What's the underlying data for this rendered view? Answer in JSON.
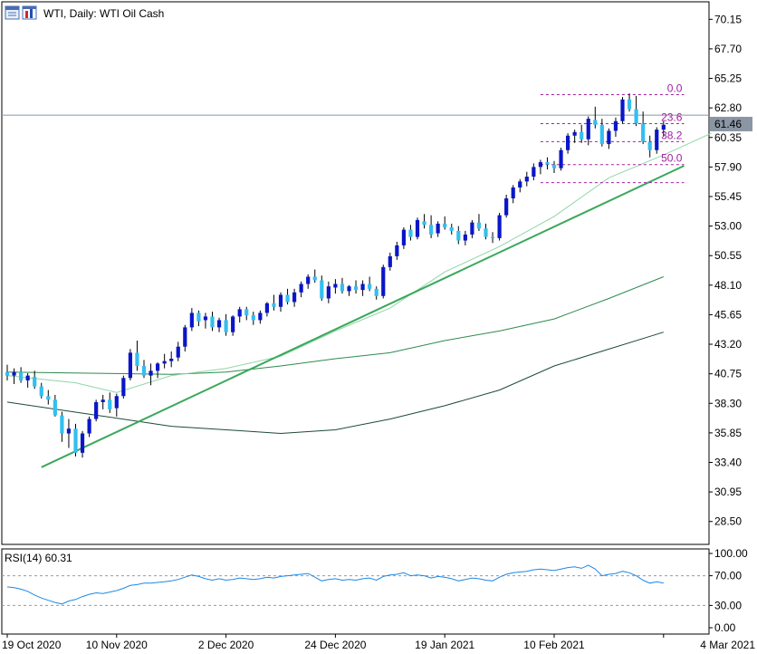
{
  "header": {
    "title": "WTI, Daily:  WTI Oil Cash",
    "icons": [
      "window-icon",
      "chart-icon"
    ]
  },
  "rsi_label": "RSI(14) 60.31",
  "colors": {
    "bull": "#0a16c8",
    "bear": "#33bff0",
    "trendline": "#3aa85a",
    "ma_fast": "#8fd6a8",
    "ma_mid": "#2e8a4e",
    "ma_slow": "#1e4a35",
    "fib": "#a020a0",
    "rsi": "#1e88e5",
    "last_price_bg": "#8a96a3"
  },
  "last_price": "61.46",
  "chart_data": {
    "type": "candlestick",
    "title": "WTI, Daily:  WTI Oil Cash",
    "price_axis_ticks": [
      "70.15",
      "67.70",
      "65.25",
      "62.80",
      "60.35",
      "57.90",
      "55.45",
      "53.00",
      "50.55",
      "48.10",
      "45.65",
      "43.20",
      "40.75",
      "38.30",
      "35.85",
      "33.40",
      "30.95",
      "28.50"
    ],
    "price_range": [
      26.6,
      71.6
    ],
    "rsi_axis_ticks": [
      "100.00",
      "70.00",
      "30.00",
      "0.00"
    ],
    "rsi_range": [
      0,
      100
    ],
    "time_axis_labels": [
      "19 Oct 2020",
      "10 Nov 2020",
      "2 Dec 2020",
      "24 Dec 2020",
      "19 Jan 2021",
      "10 Feb 2021",
      "4 Mar 2021"
    ],
    "time_label_indices": [
      0,
      16,
      32,
      48,
      64,
      80,
      96
    ],
    "candles": [
      [
        40.9,
        41.5,
        40.2,
        40.6
      ],
      [
        40.6,
        41.2,
        39.9,
        40.9
      ],
      [
        40.9,
        41.3,
        40.0,
        40.2
      ],
      [
        40.2,
        40.8,
        39.6,
        40.6
      ],
      [
        40.5,
        41.0,
        39.5,
        39.7
      ],
      [
        39.7,
        40.0,
        38.7,
        38.9
      ],
      [
        38.9,
        39.4,
        38.2,
        38.6
      ],
      [
        38.6,
        39.0,
        37.2,
        37.3
      ],
      [
        37.3,
        37.6,
        35.1,
        35.8
      ],
      [
        35.8,
        37.0,
        34.6,
        36.2
      ],
      [
        36.2,
        36.6,
        33.9,
        34.2
      ],
      [
        34.2,
        36.0,
        33.8,
        35.8
      ],
      [
        35.8,
        37.2,
        35.5,
        37.0
      ],
      [
        37.0,
        38.6,
        36.8,
        38.4
      ],
      [
        38.4,
        39.0,
        37.8,
        38.6
      ],
      [
        38.6,
        39.2,
        37.5,
        37.8
      ],
      [
        37.9,
        39.1,
        37.2,
        38.9
      ],
      [
        38.9,
        40.6,
        38.7,
        40.4
      ],
      [
        40.4,
        42.8,
        40.2,
        42.5
      ],
      [
        42.5,
        43.5,
        41.0,
        41.4
      ],
      [
        41.4,
        41.9,
        40.4,
        40.6
      ],
      [
        40.6,
        41.6,
        39.8,
        41.0
      ],
      [
        41.0,
        41.7,
        40.4,
        41.6
      ],
      [
        41.6,
        42.4,
        41.2,
        41.8
      ],
      [
        41.8,
        42.6,
        41.3,
        42.0
      ],
      [
        42.1,
        43.4,
        41.8,
        43.0
      ],
      [
        43.0,
        44.8,
        42.6,
        44.6
      ],
      [
        44.6,
        46.2,
        44.3,
        45.8
      ],
      [
        45.8,
        46.0,
        44.7,
        45.1
      ],
      [
        45.2,
        45.8,
        44.5,
        45.5
      ],
      [
        45.5,
        45.9,
        44.3,
        44.6
      ],
      [
        44.6,
        45.4,
        44.2,
        45.2
      ],
      [
        45.2,
        45.7,
        43.9,
        44.2
      ],
      [
        44.2,
        45.6,
        43.9,
        45.5
      ],
      [
        45.5,
        46.3,
        45.0,
        46.1
      ],
      [
        46.1,
        46.3,
        45.2,
        45.6
      ],
      [
        45.6,
        45.9,
        44.8,
        45.2
      ],
      [
        45.2,
        46.0,
        44.9,
        45.8
      ],
      [
        45.8,
        46.7,
        45.5,
        46.6
      ],
      [
        46.6,
        47.3,
        46.0,
        46.3
      ],
      [
        46.3,
        47.5,
        45.9,
        47.3
      ],
      [
        47.3,
        47.8,
        46.5,
        46.7
      ],
      [
        46.7,
        47.8,
        46.3,
        47.5
      ],
      [
        47.5,
        48.4,
        47.1,
        48.2
      ],
      [
        48.2,
        49.0,
        47.8,
        48.8
      ],
      [
        48.8,
        49.4,
        48.3,
        48.5
      ],
      [
        48.5,
        48.9,
        46.8,
        47.0
      ],
      [
        47.0,
        48.4,
        46.6,
        48.0
      ],
      [
        47.9,
        48.6,
        47.4,
        48.2
      ],
      [
        48.2,
        48.7,
        47.4,
        47.6
      ],
      [
        47.6,
        48.1,
        47.2,
        48.0
      ],
      [
        48.0,
        48.5,
        47.4,
        47.7
      ],
      [
        47.7,
        48.5,
        47.2,
        48.2
      ],
      [
        48.2,
        48.8,
        47.6,
        47.8
      ],
      [
        47.8,
        48.0,
        46.9,
        47.2
      ],
      [
        47.2,
        49.8,
        47.0,
        49.6
      ],
      [
        49.6,
        50.8,
        49.3,
        50.5
      ],
      [
        50.5,
        51.7,
        50.2,
        51.4
      ],
      [
        51.4,
        52.9,
        51.1,
        52.7
      ],
      [
        52.7,
        53.1,
        51.8,
        52.1
      ],
      [
        52.1,
        53.7,
        51.9,
        53.5
      ],
      [
        53.4,
        54.0,
        52.8,
        53.1
      ],
      [
        53.1,
        53.9,
        52.0,
        52.3
      ],
      [
        52.4,
        53.4,
        52.1,
        53.2
      ],
      [
        53.2,
        53.8,
        52.7,
        52.9
      ],
      [
        52.9,
        53.2,
        52.3,
        52.6
      ],
      [
        52.6,
        53.0,
        51.5,
        51.8
      ],
      [
        51.8,
        52.6,
        51.4,
        52.3
      ],
      [
        52.3,
        53.5,
        52.0,
        53.3
      ],
      [
        53.3,
        54.0,
        52.6,
        52.8
      ],
      [
        52.8,
        53.2,
        51.9,
        52.1
      ],
      [
        52.1,
        52.5,
        51.6,
        52.0
      ],
      [
        52.0,
        54.1,
        51.8,
        53.9
      ],
      [
        53.9,
        55.6,
        53.7,
        55.3
      ],
      [
        55.3,
        56.4,
        54.9,
        56.2
      ],
      [
        56.2,
        56.9,
        55.8,
        56.7
      ],
      [
        56.7,
        57.5,
        56.3,
        57.1
      ],
      [
        57.1,
        58.2,
        56.8,
        57.9
      ],
      [
        57.9,
        58.5,
        57.3,
        58.3
      ],
      [
        58.3,
        58.7,
        57.7,
        58.1
      ],
      [
        58.1,
        58.4,
        57.4,
        57.8
      ],
      [
        57.8,
        59.5,
        57.6,
        59.3
      ],
      [
        59.3,
        60.7,
        59.0,
        60.5
      ],
      [
        60.5,
        61.0,
        59.9,
        60.8
      ],
      [
        60.8,
        61.4,
        59.9,
        60.2
      ],
      [
        60.2,
        62.1,
        59.7,
        61.9
      ],
      [
        61.8,
        62.9,
        61.1,
        61.4
      ],
      [
        61.4,
        61.9,
        59.6,
        59.8
      ],
      [
        59.8,
        61.1,
        59.4,
        60.9
      ],
      [
        60.9,
        62.0,
        60.4,
        61.7
      ],
      [
        61.7,
        63.7,
        61.5,
        63.5
      ],
      [
        63.5,
        64.0,
        62.5,
        62.7
      ],
      [
        62.7,
        63.8,
        61.3,
        61.5
      ],
      [
        61.5,
        62.5,
        59.8,
        60.0
      ],
      [
        60.0,
        60.5,
        58.7,
        59.3
      ],
      [
        59.3,
        61.2,
        59.0,
        61.0
      ],
      [
        61.0,
        61.7,
        60.4,
        61.4
      ]
    ],
    "series": [
      {
        "name": "MA fast",
        "values_key": "ma_fast"
      },
      {
        "name": "MA mid",
        "values_key": "ma_mid"
      },
      {
        "name": "MA slow",
        "values_key": "ma_slow"
      }
    ],
    "ma_fast": [
      [
        0,
        40.6
      ],
      [
        10,
        40.0
      ],
      [
        16,
        39.2
      ],
      [
        24,
        40.6
      ],
      [
        32,
        41.2
      ],
      [
        40,
        42.2
      ],
      [
        48,
        44.3
      ],
      [
        56,
        46.2
      ],
      [
        64,
        49.2
      ],
      [
        72,
        51.3
      ],
      [
        80,
        53.8
      ],
      [
        88,
        57.0
      ],
      [
        96,
        58.9
      ],
      [
        103,
        60.7
      ]
    ],
    "ma_mid": [
      [
        0,
        40.9
      ],
      [
        12,
        40.8
      ],
      [
        24,
        40.7
      ],
      [
        32,
        40.9
      ],
      [
        40,
        41.4
      ],
      [
        48,
        42.0
      ],
      [
        56,
        42.5
      ],
      [
        64,
        43.5
      ],
      [
        72,
        44.3
      ],
      [
        80,
        45.3
      ],
      [
        88,
        47.0
      ],
      [
        96,
        48.8
      ]
    ],
    "ma_slow": [
      [
        0,
        38.4
      ],
      [
        12,
        37.4
      ],
      [
        24,
        36.4
      ],
      [
        32,
        36.1
      ],
      [
        40,
        35.8
      ],
      [
        48,
        36.1
      ],
      [
        56,
        37.0
      ],
      [
        64,
        38.1
      ],
      [
        72,
        39.4
      ],
      [
        80,
        41.4
      ],
      [
        88,
        42.8
      ],
      [
        96,
        44.2
      ]
    ],
    "trendline": [
      [
        5,
        33.0
      ],
      [
        99,
        58.0
      ]
    ],
    "fib_levels": [
      {
        "label": "0.0",
        "price": 63.9
      },
      {
        "label": "23.6",
        "price": 61.5
      },
      {
        "label": "38.2",
        "price": 60.0
      },
      {
        "label": "50.0",
        "price": 58.1
      },
      {
        "label": "",
        "price": 56.6
      }
    ],
    "fib_x_range_index": [
      78,
      99
    ],
    "horizontal_line_price": 62.2,
    "rsi_levels": [
      70,
      30
    ],
    "rsi_values": [
      55,
      54,
      52,
      49,
      44,
      40,
      37,
      34,
      32,
      36,
      38,
      42,
      45,
      47,
      46,
      48,
      50,
      53,
      57,
      58,
      60,
      60,
      61,
      62,
      63,
      65,
      68,
      71,
      69,
      66,
      64,
      66,
      64,
      65,
      67,
      66,
      65,
      66,
      68,
      67,
      69,
      70,
      71,
      72,
      73,
      68,
      63,
      65,
      66,
      64,
      65,
      64,
      66,
      67,
      64,
      69,
      71,
      72,
      74,
      70,
      71,
      70,
      67,
      69,
      68,
      66,
      63,
      65,
      67,
      66,
      64,
      63,
      68,
      72,
      74,
      75,
      76,
      78,
      79,
      78,
      77,
      79,
      81,
      82,
      80,
      84,
      79,
      70,
      72,
      73,
      76,
      74,
      70,
      64,
      60,
      62,
      60
    ]
  }
}
